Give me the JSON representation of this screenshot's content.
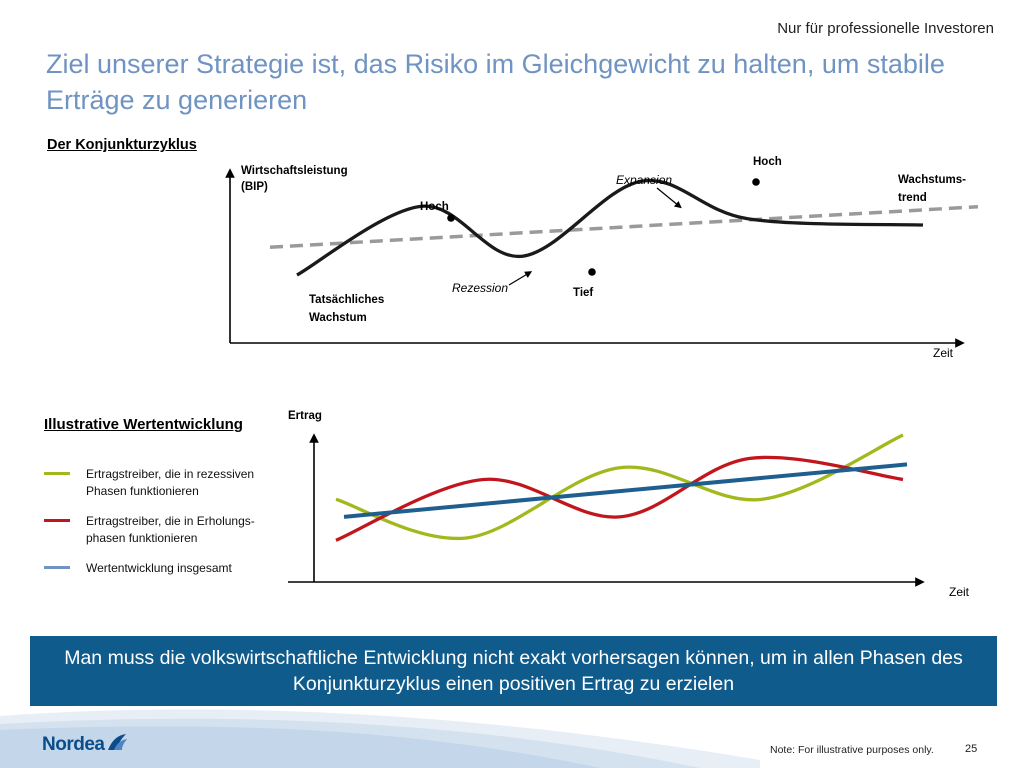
{
  "header": {
    "disclaimer": "Nur für professionelle Investoren",
    "title": "Ziel unserer Strategie ist, das Risiko im Gleichgewicht zu halten, um stabile Erträge zu generieren"
  },
  "colors": {
    "title": "#6f93c2",
    "banner": "#0e5b8c",
    "recessive": "#a3b81c",
    "recovery": "#c0161c",
    "total": "#1f5f8f",
    "trend": "#9a9a9a"
  },
  "chart_data": [
    {
      "type": "line",
      "title": "Der Konjunkturzyklus",
      "xlabel": "Zeit",
      "ylabel": "Wirtschaftsleistung (BIP)",
      "series": [
        {
          "name": "Tatsächliches Wachstum",
          "style": "solid",
          "x": [
            0,
            0.2,
            0.36,
            0.55,
            0.72,
            1
          ],
          "y": [
            0.2,
            0.75,
            0.35,
            0.95,
            0.65,
            0.6
          ]
        },
        {
          "name": "Wachstumstrend",
          "style": "dashed",
          "x": [
            0,
            1
          ],
          "y": [
            0.45,
            0.75
          ]
        }
      ],
      "annotations": {
        "peak1": "Hoch",
        "peak2": "Hoch",
        "trough": "Tief",
        "recession": "Rezession",
        "expansion": "Expansion",
        "actual_label_line1": "Tatsächliches",
        "actual_label_line2": "Wachstum",
        "trend_label_line1": "Wachstums-",
        "trend_label_line2": "trend",
        "ylabel_line1": "Wirtschaftsleistung",
        "ylabel_line2": "(BIP)"
      }
    },
    {
      "type": "line",
      "title": "Illustrative Wertentwicklung",
      "xlabel": "Zeit",
      "ylabel": "Ertrag",
      "series": [
        {
          "name": "Ertragstreiber, die in rezessiven Phasen funktionieren",
          "color": "#a3b81c",
          "x": [
            0,
            0.23,
            0.5,
            0.75,
            1
          ],
          "y": [
            0.45,
            0.12,
            0.72,
            0.45,
            1.0
          ]
        },
        {
          "name": "Ertragstreiber, die in Erholungsphasen funktionieren",
          "color": "#c0161c",
          "x": [
            0,
            0.26,
            0.5,
            0.73,
            1
          ],
          "y": [
            0.1,
            0.62,
            0.3,
            0.8,
            0.62
          ]
        },
        {
          "name": "Wertentwicklung insgesamt",
          "color": "#1f5f8f",
          "x": [
            0,
            1
          ],
          "y": [
            0.32,
            0.7
          ]
        }
      ]
    }
  ],
  "legend": [
    {
      "line1": "Ertragstreiber, die in rezessiven",
      "line2": "Phasen funktionieren",
      "color": "#a3b81c"
    },
    {
      "line1": "Ertragstreiber, die in Erholungs-",
      "line2": "phasen funktionieren",
      "color": "#c0161c"
    },
    {
      "line1": "Wertentwicklung insgesamt",
      "line2": "",
      "color": "#6f93c2"
    }
  ],
  "banner": {
    "text": "Man muss die volkswirtschaftliche Entwicklung nicht exakt vorhersagen können, um in allen Phasen des Konjunkturzyklus einen positiven Ertrag zu erzielen"
  },
  "footer": {
    "brand": "Nordea",
    "note": "Note: For illustrative purposes only.",
    "page": "25"
  }
}
